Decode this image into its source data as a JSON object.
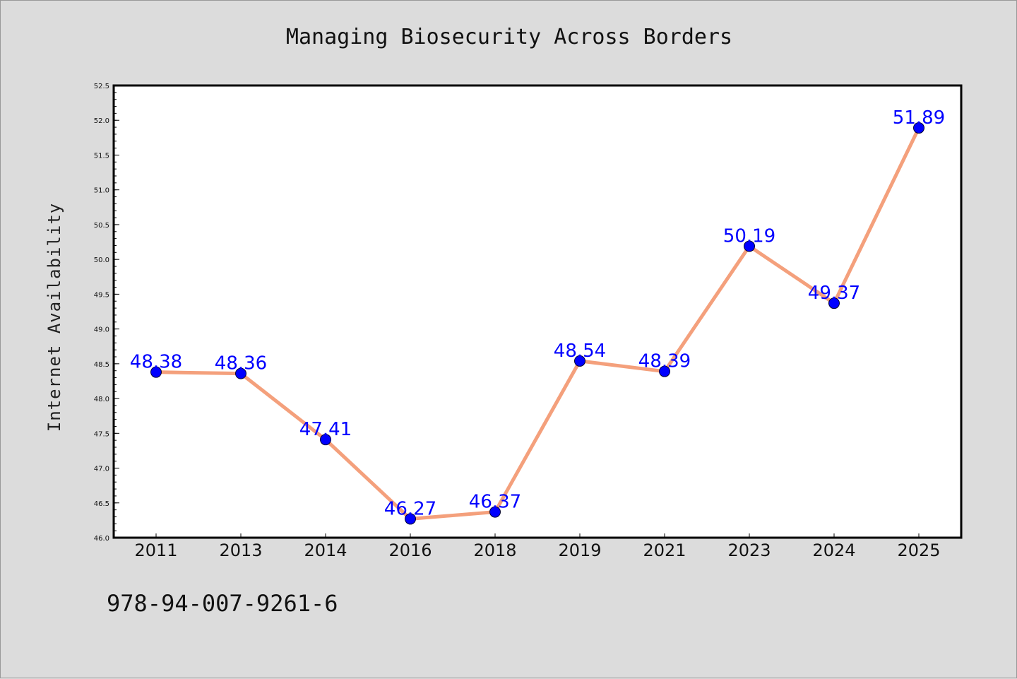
{
  "chart_data": {
    "type": "line",
    "title": "Managing Biosecurity Across Borders",
    "xlabel": "",
    "ylabel": "Internet Availability",
    "categories": [
      "2011",
      "2013",
      "2014",
      "2016",
      "2018",
      "2019",
      "2021",
      "2023",
      "2024",
      "2025"
    ],
    "series": [
      {
        "values": [
          48.38,
          48.36,
          47.41,
          46.27,
          46.37,
          48.54,
          48.39,
          50.19,
          49.37,
          51.89
        ],
        "data_labels": [
          "48.38",
          "48.36",
          "47.41",
          "46.27",
          "46.37",
          "48.54",
          "48.39",
          "50.19",
          "49.37",
          "51.89"
        ],
        "line_color": "#f4a07c",
        "marker_color": "#0000ff"
      }
    ],
    "ylim": [
      46.0,
      52.5
    ],
    "yticks": [
      "46.0",
      "46.5",
      "47.0",
      "47.5",
      "48.0",
      "48.5",
      "49.0",
      "49.5",
      "50.0",
      "50.5",
      "51.0",
      "51.5",
      "52.0",
      "52.5"
    ],
    "grid": false,
    "legend": "none",
    "label_color": "#0000ff"
  },
  "footer": {
    "code": "978-94-007-9261-6"
  }
}
